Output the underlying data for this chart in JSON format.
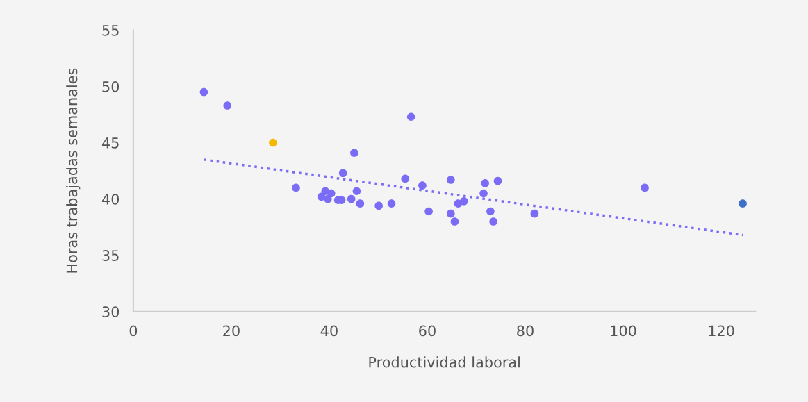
{
  "chart_data": {
    "type": "scatter",
    "xlabel": "Productividad laboral",
    "ylabel": "Horas trabajadas semanales",
    "xlim": [
      0,
      127
    ],
    "xticks": [
      0,
      20,
      40,
      60,
      80,
      100,
      120
    ],
    "ylim": [
      30,
      55
    ],
    "yticks": [
      30,
      35,
      40,
      45,
      50,
      55
    ],
    "grid": false,
    "legend": false,
    "marker": "circle",
    "series": [
      {
        "color": "#7b6cf6",
        "x": [
          14.4,
          19.2,
          33.2,
          38.4,
          39.2,
          39.7,
          40.4,
          41.8,
          42.5,
          42.8,
          44.5,
          45.1,
          45.6,
          46.3,
          50.1,
          52.7,
          55.5,
          56.7,
          59.0,
          60.3,
          64.8,
          64.8,
          65.6,
          66.3,
          67.5,
          71.5,
          71.8,
          72.9,
          73.5,
          74.4,
          81.9,
          104.4
        ],
        "values": [
          49.5,
          48.3,
          41.0,
          40.2,
          40.7,
          40.0,
          40.5,
          39.9,
          39.9,
          42.3,
          40.0,
          44.1,
          40.7,
          39.6,
          39.4,
          39.6,
          41.8,
          47.3,
          41.2,
          38.9,
          41.7,
          38.7,
          38.0,
          39.6,
          39.8,
          40.5,
          41.4,
          38.9,
          38.0,
          41.6,
          38.7,
          41.0
        ]
      },
      {
        "color": "#f5b800",
        "x": [
          28.5
        ],
        "values": [
          45.0
        ]
      },
      {
        "color": "#3f6fc9",
        "x": [
          124.4
        ],
        "values": [
          39.6
        ]
      },
      {
        "type": "line",
        "color": "#7b6cf6",
        "line_style": "dotted",
        "marker": "none",
        "x": [
          14.4,
          124.4
        ],
        "values": [
          43.5,
          36.8
        ]
      }
    ]
  }
}
